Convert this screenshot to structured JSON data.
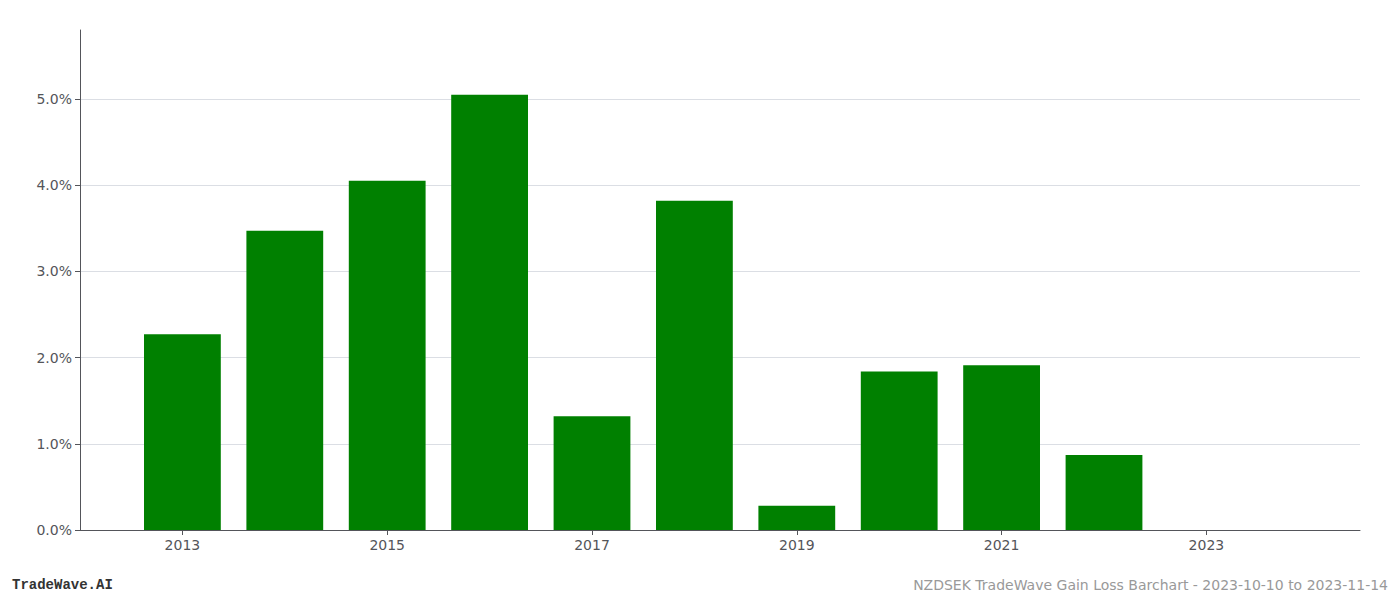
{
  "chart_data": {
    "type": "bar",
    "x": [
      2013,
      2014,
      2015,
      2016,
      2017,
      2018,
      2019,
      2020,
      2021,
      2022,
      2023
    ],
    "values": [
      0.0227,
      0.0347,
      0.0405,
      0.0505,
      0.0132,
      0.0382,
      0.0028,
      0.0184,
      0.0191,
      0.0087,
      0.0
    ],
    "color": "#008000",
    "xlim": [
      2012.0,
      2024.5
    ],
    "xticks": [
      2013,
      2015,
      2017,
      2019,
      2021,
      2023
    ],
    "ylim": [
      0,
      0.058
    ],
    "yticks": [
      {
        "value": 0.0,
        "label": "0.0%"
      },
      {
        "value": 0.01,
        "label": "1.0%"
      },
      {
        "value": 0.02,
        "label": "2.0%"
      },
      {
        "value": 0.03,
        "label": "3.0%"
      },
      {
        "value": 0.04,
        "label": "4.0%"
      },
      {
        "value": 0.05,
        "label": "5.0%"
      }
    ],
    "grid": true,
    "annotations": [
      "TradeWave.AI",
      "NZDSEK TradeWave Gain Loss Barchart - 2023-10-10 to 2023-11-14"
    ]
  }
}
